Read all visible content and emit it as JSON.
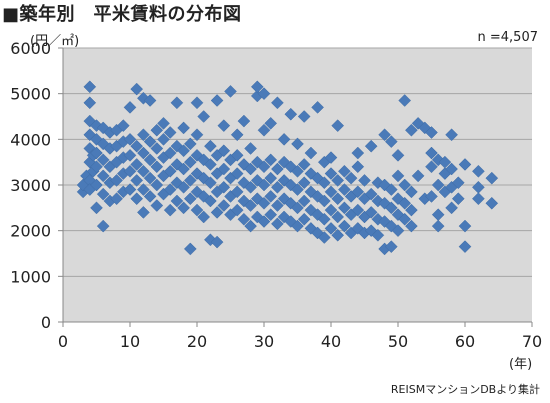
{
  "title": "■築年別　平米賃料の分布図",
  "y_unit": "(円／㎡)",
  "x_unit": "(年)",
  "count_label": "n =4,507",
  "source": "REISMマンションDBより集計",
  "colors": {
    "marker": "#4a7ab8",
    "marker_stroke": "#3d6aa3",
    "plot_bg": "#d9d9d9",
    "grid": "#a6a6a6",
    "axis": "#888888"
  },
  "chart_data": {
    "type": "scatter",
    "title": "築年別　平米賃料の分布図",
    "xlabel": "(年)",
    "ylabel": "(円／㎡)",
    "xlim": [
      0,
      70
    ],
    "ylim": [
      0,
      6000
    ],
    "x_ticks": [
      0,
      10,
      20,
      30,
      40,
      50,
      60,
      70
    ],
    "y_ticks": [
      0,
      1000,
      2000,
      3000,
      4000,
      5000,
      6000
    ],
    "grid": {
      "x": false,
      "y": true
    },
    "legend": "none",
    "series": [
      {
        "points": [
          [
            3,
            2850
          ],
          [
            3,
            3000
          ],
          [
            3.5,
            3200
          ],
          [
            4,
            3100
          ],
          [
            4,
            3500
          ],
          [
            4,
            3800
          ],
          [
            4,
            4100
          ],
          [
            4,
            4400
          ],
          [
            4,
            4800
          ],
          [
            4,
            5150
          ],
          [
            4,
            2900
          ],
          [
            4.5,
            3300
          ],
          [
            4.5,
            3650
          ],
          [
            5,
            2500
          ],
          [
            5,
            3000
          ],
          [
            5,
            3400
          ],
          [
            5,
            3700
          ],
          [
            5,
            4000
          ],
          [
            5,
            4300
          ],
          [
            6,
            2100
          ],
          [
            6,
            2800
          ],
          [
            6,
            3200
          ],
          [
            6,
            3550
          ],
          [
            6,
            3900
          ],
          [
            6,
            4250
          ],
          [
            7,
            2650
          ],
          [
            7,
            3050
          ],
          [
            7,
            3400
          ],
          [
            7,
            3800
          ],
          [
            7,
            4150
          ],
          [
            8,
            2700
          ],
          [
            8,
            3100
          ],
          [
            8,
            3500
          ],
          [
            8,
            3850
          ],
          [
            8,
            4200
          ],
          [
            9,
            2850
          ],
          [
            9,
            3250
          ],
          [
            9,
            3600
          ],
          [
            9,
            3950
          ],
          [
            9,
            4300
          ],
          [
            10,
            2900
          ],
          [
            10,
            3300
          ],
          [
            10,
            3650
          ],
          [
            10,
            4000
          ],
          [
            10,
            4700
          ],
          [
            11,
            2700
          ],
          [
            11,
            3100
          ],
          [
            11,
            3450
          ],
          [
            11,
            3850
          ],
          [
            11,
            5100
          ],
          [
            12,
            2400
          ],
          [
            12,
            2900
          ],
          [
            12,
            3300
          ],
          [
            12,
            3700
          ],
          [
            12,
            4100
          ],
          [
            12,
            4900
          ],
          [
            13,
            2750
          ],
          [
            13,
            3150
          ],
          [
            13,
            3550
          ],
          [
            13,
            3950
          ],
          [
            13,
            4850
          ],
          [
            14,
            2550
          ],
          [
            14,
            3000
          ],
          [
            14,
            3400
          ],
          [
            14,
            3800
          ],
          [
            14,
            4200
          ],
          [
            15,
            2800
          ],
          [
            15,
            3200
          ],
          [
            15,
            3600
          ],
          [
            15,
            4000
          ],
          [
            15,
            4350
          ],
          [
            16,
            2450
          ],
          [
            16,
            2900
          ],
          [
            16,
            3300
          ],
          [
            16,
            3700
          ],
          [
            16,
            4150
          ],
          [
            17,
            2650
          ],
          [
            17,
            3050
          ],
          [
            17,
            3450
          ],
          [
            17,
            3850
          ],
          [
            17,
            4800
          ],
          [
            18,
            2500
          ],
          [
            18,
            2950
          ],
          [
            18,
            3350
          ],
          [
            18,
            3750
          ],
          [
            18,
            4250
          ],
          [
            19,
            1600
          ],
          [
            19,
            2700
          ],
          [
            19,
            3100
          ],
          [
            19,
            3500
          ],
          [
            19,
            3900
          ],
          [
            20,
            2450
          ],
          [
            20,
            2850
          ],
          [
            20,
            3250
          ],
          [
            20,
            3650
          ],
          [
            20,
            4100
          ],
          [
            20,
            4800
          ],
          [
            21,
            2300
          ],
          [
            21,
            2750
          ],
          [
            21,
            3150
          ],
          [
            21,
            3550
          ],
          [
            21,
            4500
          ],
          [
            22,
            1800
          ],
          [
            22,
            2650
          ],
          [
            22,
            3050
          ],
          [
            22,
            3450
          ],
          [
            22,
            3850
          ],
          [
            23,
            1750
          ],
          [
            23,
            2400
          ],
          [
            23,
            2850
          ],
          [
            23,
            3250
          ],
          [
            23,
            3650
          ],
          [
            23,
            4850
          ],
          [
            24,
            2550
          ],
          [
            24,
            2950
          ],
          [
            24,
            3350
          ],
          [
            24,
            3750
          ],
          [
            24,
            4300
          ],
          [
            25,
            2350
          ],
          [
            25,
            2750
          ],
          [
            25,
            3150
          ],
          [
            25,
            3550
          ],
          [
            25,
            5050
          ],
          [
            26,
            2450
          ],
          [
            26,
            2850
          ],
          [
            26,
            3250
          ],
          [
            26,
            3650
          ],
          [
            26,
            4100
          ],
          [
            27,
            2250
          ],
          [
            27,
            2650
          ],
          [
            27,
            3050
          ],
          [
            27,
            3450
          ],
          [
            27,
            4400
          ],
          [
            28,
            2100
          ],
          [
            28,
            2550
          ],
          [
            28,
            2950
          ],
          [
            28,
            3350
          ],
          [
            28,
            3800
          ],
          [
            29,
            2300
          ],
          [
            29,
            2700
          ],
          [
            29,
            3100
          ],
          [
            29,
            3500
          ],
          [
            29,
            4950
          ],
          [
            29,
            5150
          ],
          [
            30,
            2200
          ],
          [
            30,
            2600
          ],
          [
            30,
            3000
          ],
          [
            30,
            3400
          ],
          [
            30,
            4200
          ],
          [
            30,
            5000
          ],
          [
            31,
            2350
          ],
          [
            31,
            2750
          ],
          [
            31,
            3150
          ],
          [
            31,
            3550
          ],
          [
            31,
            4350
          ],
          [
            32,
            2150
          ],
          [
            32,
            2550
          ],
          [
            32,
            2950
          ],
          [
            32,
            3350
          ],
          [
            32,
            4800
          ],
          [
            33,
            2300
          ],
          [
            33,
            2700
          ],
          [
            33,
            3100
          ],
          [
            33,
            3500
          ],
          [
            33,
            4000
          ],
          [
            34,
            2200
          ],
          [
            34,
            2600
          ],
          [
            34,
            3000
          ],
          [
            34,
            3400
          ],
          [
            34,
            4550
          ],
          [
            35,
            2100
          ],
          [
            35,
            2500
          ],
          [
            35,
            2900
          ],
          [
            35,
            3300
          ],
          [
            35,
            3900
          ],
          [
            36,
            2250
          ],
          [
            36,
            2650
          ],
          [
            36,
            3050
          ],
          [
            36,
            3450
          ],
          [
            36,
            4500
          ],
          [
            37,
            2050
          ],
          [
            37,
            2450
          ],
          [
            37,
            2850
          ],
          [
            37,
            3250
          ],
          [
            37,
            3700
          ],
          [
            38,
            1950
          ],
          [
            38,
            2350
          ],
          [
            38,
            2750
          ],
          [
            38,
            3150
          ],
          [
            38,
            4700
          ],
          [
            39,
            1850
          ],
          [
            39,
            2250
          ],
          [
            39,
            2650
          ],
          [
            39,
            3050
          ],
          [
            39,
            3500
          ],
          [
            40,
            2050
          ],
          [
            40,
            2450
          ],
          [
            40,
            2850
          ],
          [
            40,
            3250
          ],
          [
            40,
            3600
          ],
          [
            41,
            1900
          ],
          [
            41,
            2300
          ],
          [
            41,
            2700
          ],
          [
            41,
            3100
          ],
          [
            41,
            4300
          ],
          [
            42,
            2100
          ],
          [
            42,
            2500
          ],
          [
            42,
            2900
          ],
          [
            42,
            3300
          ],
          [
            43,
            1950
          ],
          [
            43,
            2350
          ],
          [
            43,
            2750
          ],
          [
            43,
            3150
          ],
          [
            44,
            2050
          ],
          [
            44,
            2450
          ],
          [
            44,
            2850
          ],
          [
            44,
            3400
          ],
          [
            44,
            3700
          ],
          [
            45,
            1950
          ],
          [
            45,
            2300
          ],
          [
            45,
            2700
          ],
          [
            45,
            3100
          ],
          [
            46,
            2000
          ],
          [
            46,
            2400
          ],
          [
            46,
            2800
          ],
          [
            46,
            3850
          ],
          [
            47,
            1900
          ],
          [
            47,
            2250
          ],
          [
            47,
            2650
          ],
          [
            47,
            3050
          ],
          [
            48,
            1600
          ],
          [
            48,
            2200
          ],
          [
            48,
            2600
          ],
          [
            48,
            3000
          ],
          [
            48,
            4100
          ],
          [
            49,
            1650
          ],
          [
            49,
            2100
          ],
          [
            49,
            2500
          ],
          [
            49,
            2900
          ],
          [
            49,
            3950
          ],
          [
            50,
            2000
          ],
          [
            50,
            2350
          ],
          [
            50,
            2700
          ],
          [
            50,
            3200
          ],
          [
            50,
            3650
          ],
          [
            51,
            2250
          ],
          [
            51,
            2600
          ],
          [
            51,
            3000
          ],
          [
            51,
            4850
          ],
          [
            52,
            2100
          ],
          [
            52,
            2450
          ],
          [
            52,
            2850
          ],
          [
            52,
            4200
          ],
          [
            53,
            3200
          ],
          [
            53,
            4350
          ],
          [
            54,
            2700
          ],
          [
            54,
            4250
          ],
          [
            55,
            2750
          ],
          [
            55,
            3400
          ],
          [
            55,
            3700
          ],
          [
            55,
            4150
          ],
          [
            56,
            2100
          ],
          [
            56,
            2350
          ],
          [
            56,
            3000
          ],
          [
            56,
            3550
          ],
          [
            57,
            2850
          ],
          [
            57,
            3250
          ],
          [
            57,
            3500
          ],
          [
            58,
            2500
          ],
          [
            58,
            2950
          ],
          [
            58,
            3350
          ],
          [
            58,
            4100
          ],
          [
            59,
            2700
          ],
          [
            59,
            3050
          ],
          [
            60,
            1650
          ],
          [
            60,
            2100
          ],
          [
            60,
            3450
          ],
          [
            62,
            2950
          ],
          [
            62,
            3300
          ],
          [
            62,
            2700
          ],
          [
            64,
            2600
          ],
          [
            64,
            3150
          ]
        ]
      }
    ]
  }
}
